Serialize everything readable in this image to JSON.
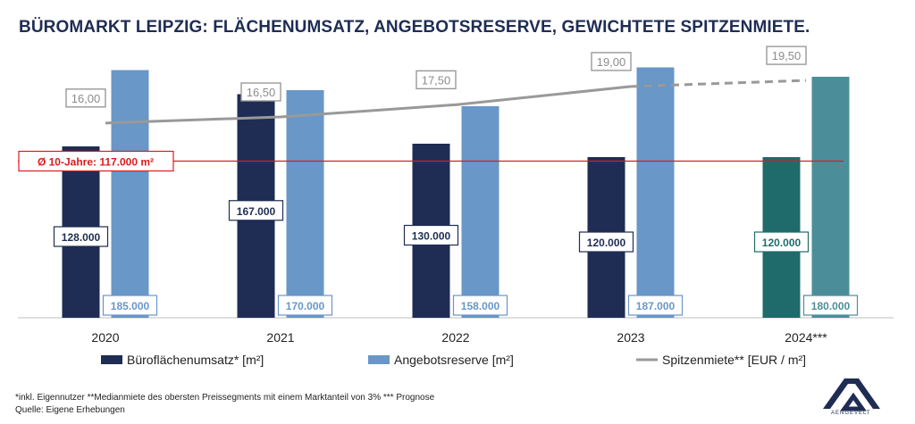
{
  "title": "BÜROMARKT LEIPZIG: FLÄCHENUMSATZ, ANGEBOTSRESERVE, GEWICHTETE SPITZENMIETE.",
  "footnote_1": "*inkl. Eigennutzer **Medianmiete des obersten Preissegments mit einem Marktanteil von 3% *** Prognose",
  "footnote_2": "Quelle: Eigene Erhebungen",
  "logo_text": "AENGEVELT",
  "chart_data": {
    "type": "bar",
    "categories": [
      "2020",
      "2021",
      "2022",
      "2023",
      "2024***"
    ],
    "series": [
      {
        "name": "Büroflächenumsatz* [m²]",
        "values": [
          128000,
          167000,
          130000,
          120000,
          120000
        ],
        "labels": [
          "128.000",
          "167.000",
          "130.000",
          "120.000",
          "120.000"
        ],
        "color": "#1f2d54",
        "forecast_color": "#1f6b6b"
      },
      {
        "name": "Angebotsreserve [m²]",
        "values": [
          185000,
          170000,
          158000,
          187000,
          180000
        ],
        "labels": [
          "185.000",
          "170.000",
          "158.000",
          "187.000",
          "180.000"
        ],
        "color": "#6897c8",
        "forecast_color": "#4b8e9a"
      },
      {
        "name": "Spitzenmiete** [EUR / m²]",
        "type": "line",
        "values": [
          16.0,
          16.5,
          17.5,
          19.0,
          19.5
        ],
        "labels": [
          "16,00",
          "16,50",
          "17,50",
          "19,00",
          "19,50"
        ],
        "color": "#999999",
        "forecast_dashed": true
      }
    ],
    "reference_line": {
      "value": 117000,
      "label": "Ø 10-Jahre: 117.000 m²",
      "color": "#e0191e"
    },
    "forecast_index": 4,
    "ylim": [
      0,
      200000
    ],
    "rent_ylim": [
      0,
      22
    ],
    "legend_position": "bottom",
    "grid": false
  }
}
